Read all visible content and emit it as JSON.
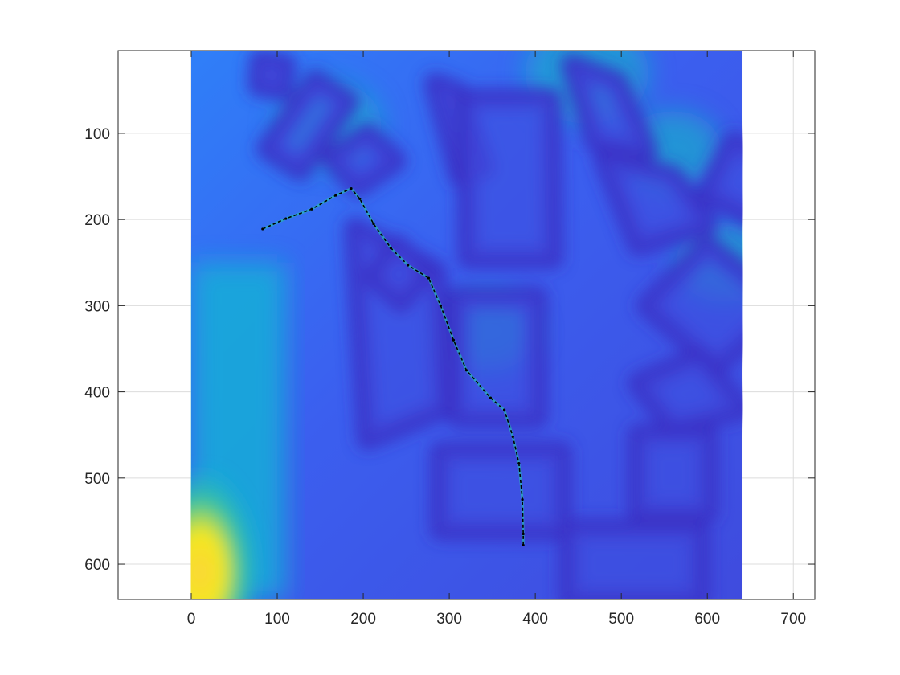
{
  "chart_data": {
    "type": "heatmap",
    "title": "",
    "xlabel": "",
    "ylabel": "",
    "xlim": [
      -85,
      725
    ],
    "ylim": [
      641,
      4
    ],
    "y_reversed": true,
    "grid": true,
    "image_extent": {
      "x": [
        0,
        641
      ],
      "y": [
        4,
        641
      ]
    },
    "colormap": "parula",
    "x_ticks": [
      {
        "value": 0,
        "label": "0"
      },
      {
        "value": 100,
        "label": "100"
      },
      {
        "value": 200,
        "label": "200"
      },
      {
        "value": 300,
        "label": "300"
      },
      {
        "value": 400,
        "label": "400"
      },
      {
        "value": 500,
        "label": "500"
      },
      {
        "value": 600,
        "label": "600"
      },
      {
        "value": 700,
        "label": "700"
      }
    ],
    "y_ticks": [
      {
        "value": 100,
        "label": "100"
      },
      {
        "value": 200,
        "label": "200"
      },
      {
        "value": 300,
        "label": "300"
      },
      {
        "value": 400,
        "label": "400"
      },
      {
        "value": 500,
        "label": "500"
      },
      {
        "value": 600,
        "label": "600"
      }
    ],
    "obstacles": [
      [
        [
          88,
          118
        ],
        [
          144,
          38
        ],
        [
          183,
          63
        ],
        [
          127,
          143
        ]
      ],
      [
        [
          163,
          130
        ],
        [
          205,
          100
        ],
        [
          238,
          132
        ],
        [
          194,
          162
        ]
      ],
      [
        [
          283,
          42
        ],
        [
          310,
          52
        ],
        [
          340,
          140
        ],
        [
          312,
          150
        ]
      ],
      [
        [
          320,
          60
        ],
        [
          418,
          60
        ],
        [
          420,
          245
        ],
        [
          322,
          245
        ]
      ],
      [
        [
          442,
          20
        ],
        [
          495,
          40
        ],
        [
          530,
          120
        ],
        [
          470,
          110
        ]
      ],
      [
        [
          480,
          130
        ],
        [
          560,
          150
        ],
        [
          600,
          205
        ],
        [
          520,
          230
        ]
      ],
      [
        [
          630,
          110
        ],
        [
          690,
          140
        ],
        [
          670,
          205
        ],
        [
          600,
          170
        ]
      ],
      [
        [
          190,
          210
        ],
        [
          285,
          260
        ],
        [
          292,
          420
        ],
        [
          205,
          455
        ]
      ],
      [
        [
          240,
          230
        ],
        [
          270,
          262
        ],
        [
          244,
          296
        ],
        [
          212,
          266
        ]
      ],
      [
        [
          310,
          290
        ],
        [
          402,
          290
        ],
        [
          402,
          430
        ],
        [
          310,
          430
        ]
      ],
      [
        [
          530,
          300
        ],
        [
          600,
          230
        ],
        [
          690,
          300
        ],
        [
          610,
          370
        ]
      ],
      [
        [
          520,
          390
        ],
        [
          590,
          360
        ],
        [
          640,
          420
        ],
        [
          560,
          440
        ]
      ],
      [
        [
          290,
          470
        ],
        [
          430,
          470
        ],
        [
          430,
          560
        ],
        [
          290,
          560
        ]
      ],
      [
        [
          440,
          560
        ],
        [
          590,
          560
        ],
        [
          590,
          640
        ],
        [
          440,
          640
        ]
      ],
      [
        [
          520,
          450
        ],
        [
          600,
          450
        ],
        [
          600,
          540
        ],
        [
          520,
          540
        ]
      ],
      [
        [
          80,
          15
        ],
        [
          110,
          20
        ],
        [
          105,
          50
        ],
        [
          78,
          45
        ]
      ]
    ],
    "bright_region": {
      "x": [
        0,
        60
      ],
      "y": [
        490,
        641
      ]
    },
    "series": [
      {
        "line_style": "dashed",
        "color": "#000000",
        "points": [
          [
            83,
            211
          ],
          [
            110,
            199
          ],
          [
            140,
            188
          ],
          [
            168,
            172
          ],
          [
            186,
            164
          ],
          [
            196,
            176
          ],
          [
            212,
            205
          ],
          [
            232,
            233
          ],
          [
            252,
            253
          ],
          [
            276,
            268
          ],
          [
            290,
            300
          ],
          [
            305,
            340
          ],
          [
            320,
            375
          ],
          [
            348,
            407
          ],
          [
            364,
            421
          ],
          [
            374,
            452
          ],
          [
            381,
            483
          ],
          [
            385,
            525
          ],
          [
            386,
            565
          ],
          [
            386,
            578
          ]
        ]
      }
    ]
  }
}
